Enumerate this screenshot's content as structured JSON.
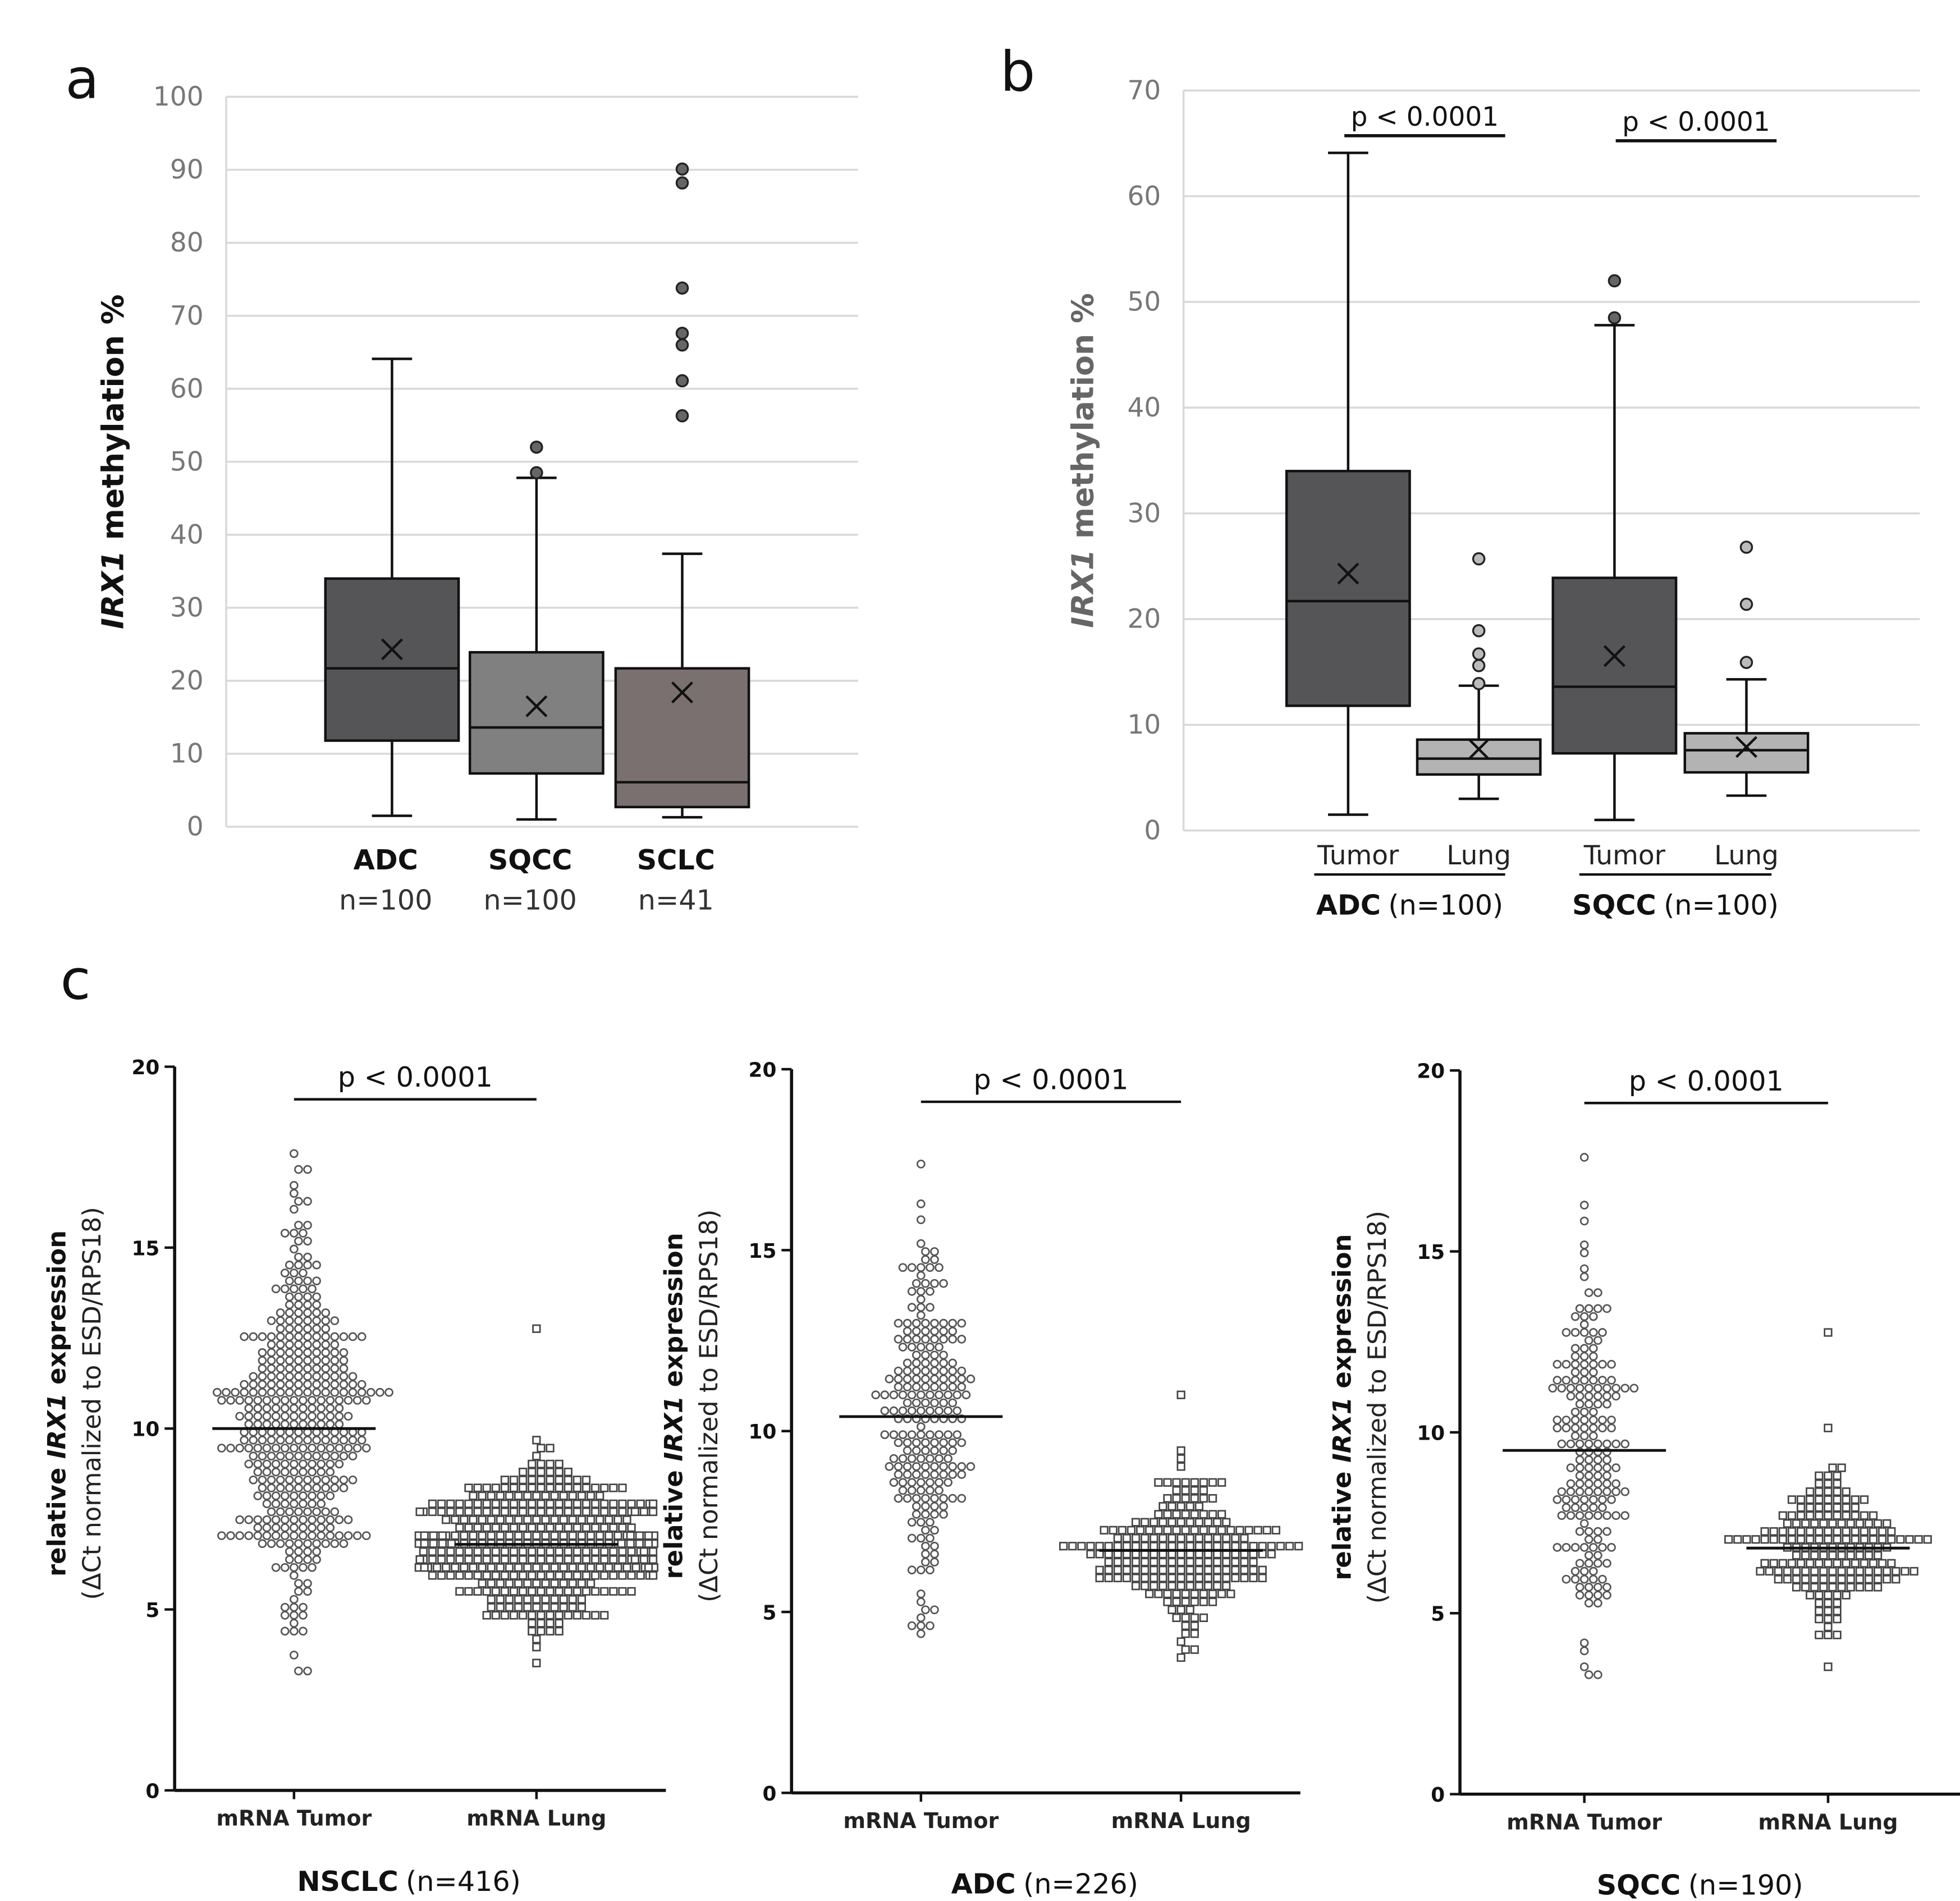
{
  "panels": {
    "a": "a",
    "b": "b",
    "c": "c"
  },
  "chart_data": [
    {
      "type": "box",
      "panel": "a",
      "ylabel_italic": "IRX1",
      "ylabel_rest": " methylation %",
      "ylim": [
        0,
        100
      ],
      "yticks": [
        0,
        10,
        20,
        30,
        40,
        50,
        60,
        70,
        80,
        90,
        100
      ],
      "grid": true,
      "groups": [
        {
          "name": "ADC",
          "n": "n=100",
          "min": 1.5,
          "q1": 11.8,
          "median": 21.7,
          "q3": 34,
          "max": 64.1,
          "mean": 24.3,
          "outliers": [],
          "color": "#555557"
        },
        {
          "name": "SQCC",
          "n": "n=100",
          "min": 1,
          "q1": 7.3,
          "median": 13.6,
          "q3": 23.9,
          "max": 47.8,
          "mean": 16.5,
          "outliers": [
            48.5,
            52
          ],
          "color": "#808080"
        },
        {
          "name": "SCLC",
          "n": "n=41",
          "min": 1.3,
          "q1": 2.7,
          "median": 6.1,
          "q3": 21.7,
          "max": 37.4,
          "mean": 18.4,
          "outliers": [
            56.3,
            61.1,
            66,
            67.6,
            73.8,
            88.2,
            90.1
          ],
          "color": "#7a7070"
        }
      ]
    },
    {
      "type": "box",
      "panel": "b",
      "ylabel_italic": "IRX1",
      "ylabel_rest": " methylation %",
      "ylim": [
        0,
        70
      ],
      "yticks": [
        0,
        10,
        20,
        30,
        40,
        50,
        60,
        70
      ],
      "grid": true,
      "boxes": [
        {
          "name": "Tumor",
          "min": 1.5,
          "q1": 11.8,
          "median": 21.7,
          "q3": 34,
          "max": 64.1,
          "mean": 24.3,
          "outliers": [],
          "color": "#555557"
        },
        {
          "name": "Lung",
          "min": 3,
          "q1": 5.3,
          "median": 6.8,
          "q3": 8.6,
          "max": 13.7,
          "mean": 7.7,
          "outliers": [
            13.9,
            15.6,
            16.7,
            18.9,
            25.7
          ],
          "color": "#b3b3b3"
        },
        {
          "name": "Tumor",
          "min": 1,
          "q1": 7.3,
          "median": 13.6,
          "q3": 23.9,
          "max": 47.8,
          "mean": 16.5,
          "outliers": [
            48.5,
            52
          ],
          "color": "#555557"
        },
        {
          "name": "Lung",
          "min": 3.3,
          "q1": 5.5,
          "median": 7.6,
          "q3": 9.2,
          "max": 14.3,
          "mean": 7.9,
          "outliers": [
            15.9,
            21.4,
            26.8
          ],
          "color": "#b3b3b3"
        }
      ],
      "groups": [
        {
          "name": "ADC",
          "n": "(n=100)",
          "pvalue": "p < 0.0001"
        },
        {
          "name": "SQCC",
          "n": "(n=100)",
          "pvalue": "p < 0.0001"
        }
      ]
    },
    {
      "type": "scatter",
      "panel": "c",
      "title": "NSCLC",
      "n": "(n=416)",
      "pvalue": "p < 0.0001",
      "ylabel_pre": "relative ",
      "ylabel_italic": "IRX1",
      "ylabel_post": " expression",
      "ylabel2": "(ΔCt normalized to ESD/RPS18)",
      "ylim": [
        0,
        20
      ],
      "yticks": [
        0,
        5,
        10,
        15,
        20
      ],
      "series": [
        {
          "name": "mRNA Tumor",
          "marker": "circle",
          "count": 416,
          "median": 10.0,
          "min": 3.2,
          "max": 17.7,
          "sd": 2.9
        },
        {
          "name": "mRNA Lung",
          "marker": "square",
          "count": 416,
          "median": 6.8,
          "min": 3.5,
          "max": 12.8,
          "sd": 1.2
        }
      ]
    },
    {
      "type": "scatter",
      "panel": "c",
      "title": "ADC",
      "n": "(n=226)",
      "pvalue": "p < 0.0001",
      "ylabel_pre": "relative ",
      "ylabel_italic": "IRX1",
      "ylabel_post": " expression",
      "ylabel2": "(ΔCt normalized to ESD/RPS18)",
      "ylim": [
        0,
        20
      ],
      "yticks": [
        0,
        5,
        10,
        15,
        20
      ],
      "series": [
        {
          "name": "mRNA Tumor",
          "marker": "circle",
          "count": 226,
          "median": 10.4,
          "min": 4.3,
          "max": 17.4,
          "sd": 2.8
        },
        {
          "name": "mRNA Lung",
          "marker": "square",
          "count": 226,
          "median": 6.7,
          "min": 3.8,
          "max": 10.9,
          "sd": 1.1
        }
      ]
    },
    {
      "type": "scatter",
      "panel": "c",
      "title": "SQCC",
      "n": "(n=190)",
      "pvalue": "p < 0.0001",
      "ylabel_pre": "relative ",
      "ylabel_italic": "IRX1",
      "ylabel_post": " expression",
      "ylabel2": "(ΔCt normalized to ESD/RPS18)",
      "ylim": [
        0,
        20
      ],
      "yticks": [
        0,
        5,
        10,
        15,
        20
      ],
      "series": [
        {
          "name": "mRNA Tumor",
          "marker": "circle",
          "count": 190,
          "median": 9.5,
          "min": 3.2,
          "max": 17.7,
          "sd": 3.0
        },
        {
          "name": "mRNA Lung",
          "marker": "square",
          "count": 190,
          "median": 6.8,
          "min": 3.5,
          "max": 12.8,
          "sd": 1.2
        }
      ]
    }
  ]
}
